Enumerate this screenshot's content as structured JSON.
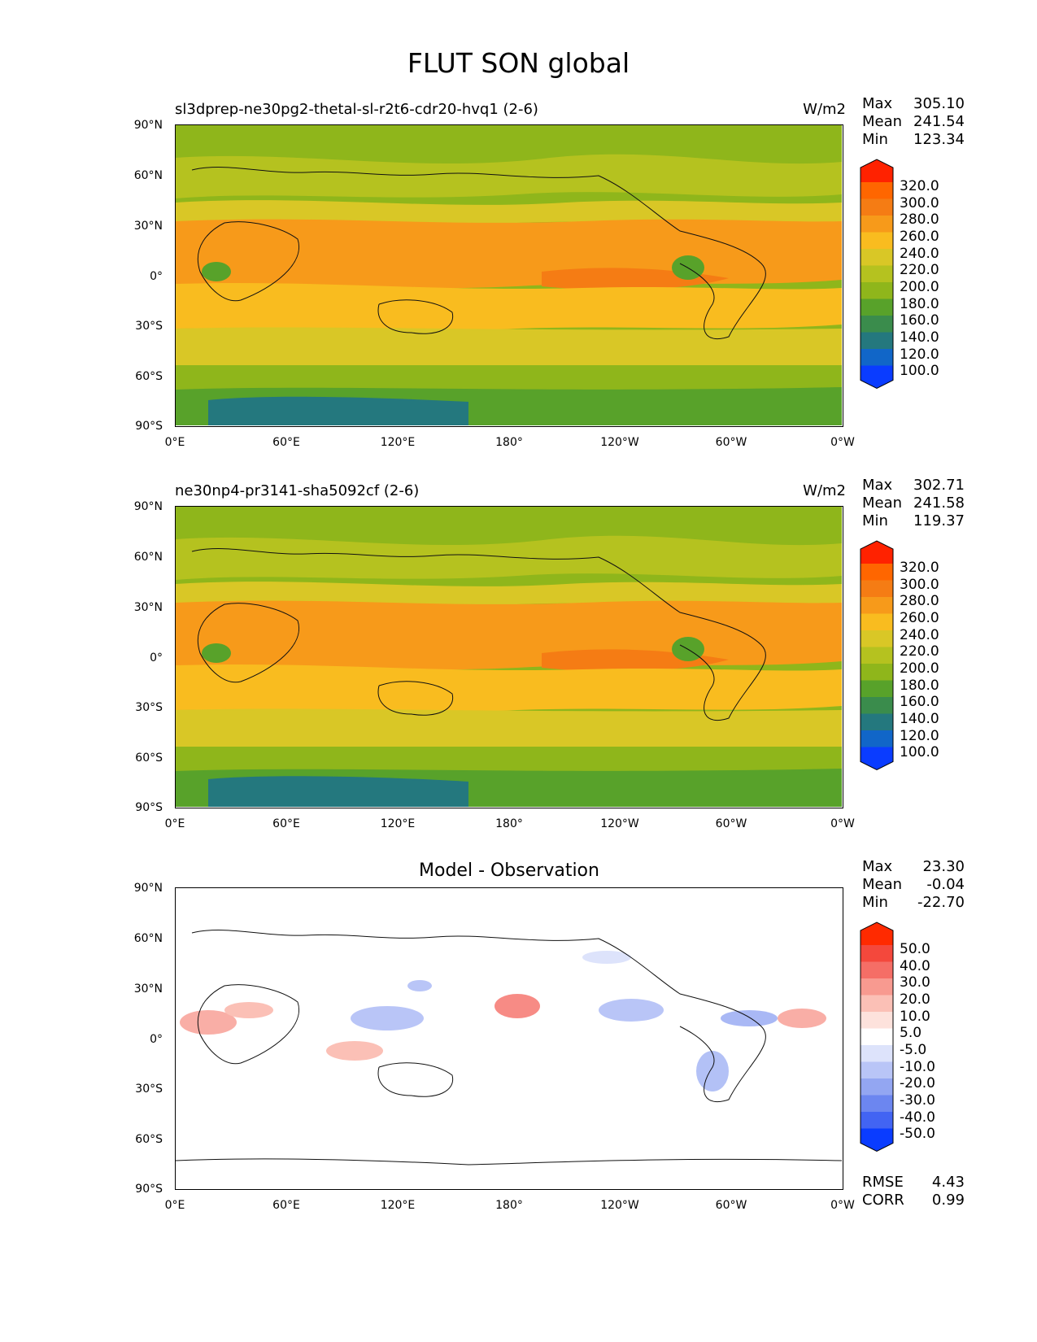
{
  "figure": {
    "title": "FLUT SON global"
  },
  "chart_data": [
    {
      "type": "heatmap",
      "title": "sl3dprep-ne30pg2-thetal-sl-r2t6-cdr20-hvq1 (2-6)",
      "units": "W/m2",
      "stats": {
        "max_label": "Max",
        "max": "305.10",
        "mean_label": "Mean",
        "mean": "241.54",
        "min_label": "Min",
        "min": "123.34"
      },
      "x_tick_labels": [
        "0°E",
        "60°E",
        "120°E",
        "180°",
        "120°W",
        "60°W",
        "0°W"
      ],
      "y_tick_labels": [
        "90°N",
        "60°N",
        "30°N",
        "0°",
        "30°S",
        "60°S",
        "90°S"
      ],
      "colorbar": {
        "labels": [
          "320.0",
          "300.0",
          "280.0",
          "260.0",
          "240.0",
          "220.0",
          "200.0",
          "180.0",
          "160.0",
          "140.0",
          "120.0",
          "100.0"
        ],
        "colors": [
          "#ff2200",
          "#ff6600",
          "#f57c14",
          "#f79a1a",
          "#f9bc1f",
          "#d9c726",
          "#b5c21f",
          "#8fb61b",
          "#58a22a",
          "#3a8c4c",
          "#24787e",
          "#1166c8",
          "#0a3cff"
        ]
      }
    },
    {
      "type": "heatmap",
      "title": "ne30np4-pr3141-sha5092cf (2-6)",
      "units": "W/m2",
      "stats": {
        "max_label": "Max",
        "max": "302.71",
        "mean_label": "Mean",
        "mean": "241.58",
        "min_label": "Min",
        "min": "119.37"
      },
      "x_tick_labels": [
        "0°E",
        "60°E",
        "120°E",
        "180°",
        "120°W",
        "60°W",
        "0°W"
      ],
      "y_tick_labels": [
        "90°N",
        "60°N",
        "30°N",
        "0°",
        "30°S",
        "60°S",
        "90°S"
      ],
      "colorbar": {
        "labels": [
          "320.0",
          "300.0",
          "280.0",
          "260.0",
          "240.0",
          "220.0",
          "200.0",
          "180.0",
          "160.0",
          "140.0",
          "120.0",
          "100.0"
        ],
        "colors": [
          "#ff2200",
          "#ff6600",
          "#f57c14",
          "#f79a1a",
          "#f9bc1f",
          "#d9c726",
          "#b5c21f",
          "#8fb61b",
          "#58a22a",
          "#3a8c4c",
          "#24787e",
          "#1166c8",
          "#0a3cff"
        ]
      }
    },
    {
      "type": "heatmap",
      "title": "Model - Observation",
      "stats": {
        "max_label": "Max",
        "max": "23.30",
        "mean_label": "Mean",
        "mean": "-0.04",
        "min_label": "Min",
        "min": "-22.70"
      },
      "metrics": {
        "rmse_label": "RMSE",
        "rmse": "4.43",
        "corr_label": "CORR",
        "corr": "0.99"
      },
      "x_tick_labels": [
        "0°E",
        "60°E",
        "120°E",
        "180°",
        "120°W",
        "60°W",
        "0°W"
      ],
      "y_tick_labels": [
        "90°N",
        "60°N",
        "30°N",
        "0°",
        "30°S",
        "60°S",
        "90°S"
      ],
      "colorbar": {
        "labels": [
          "50.0",
          "40.0",
          "30.0",
          "20.0",
          "10.0",
          "5.0",
          "-5.0",
          "-10.0",
          "-20.0",
          "-30.0",
          "-40.0",
          "-50.0"
        ],
        "colors": [
          "#ff2a00",
          "#f4483c",
          "#f56e66",
          "#f89a90",
          "#fbc0b6",
          "#fde2dc",
          "#ffffff",
          "#dde3fb",
          "#b9c5f7",
          "#93a6f2",
          "#6c86f0",
          "#4264f3",
          "#0a3cff"
        ]
      }
    }
  ]
}
